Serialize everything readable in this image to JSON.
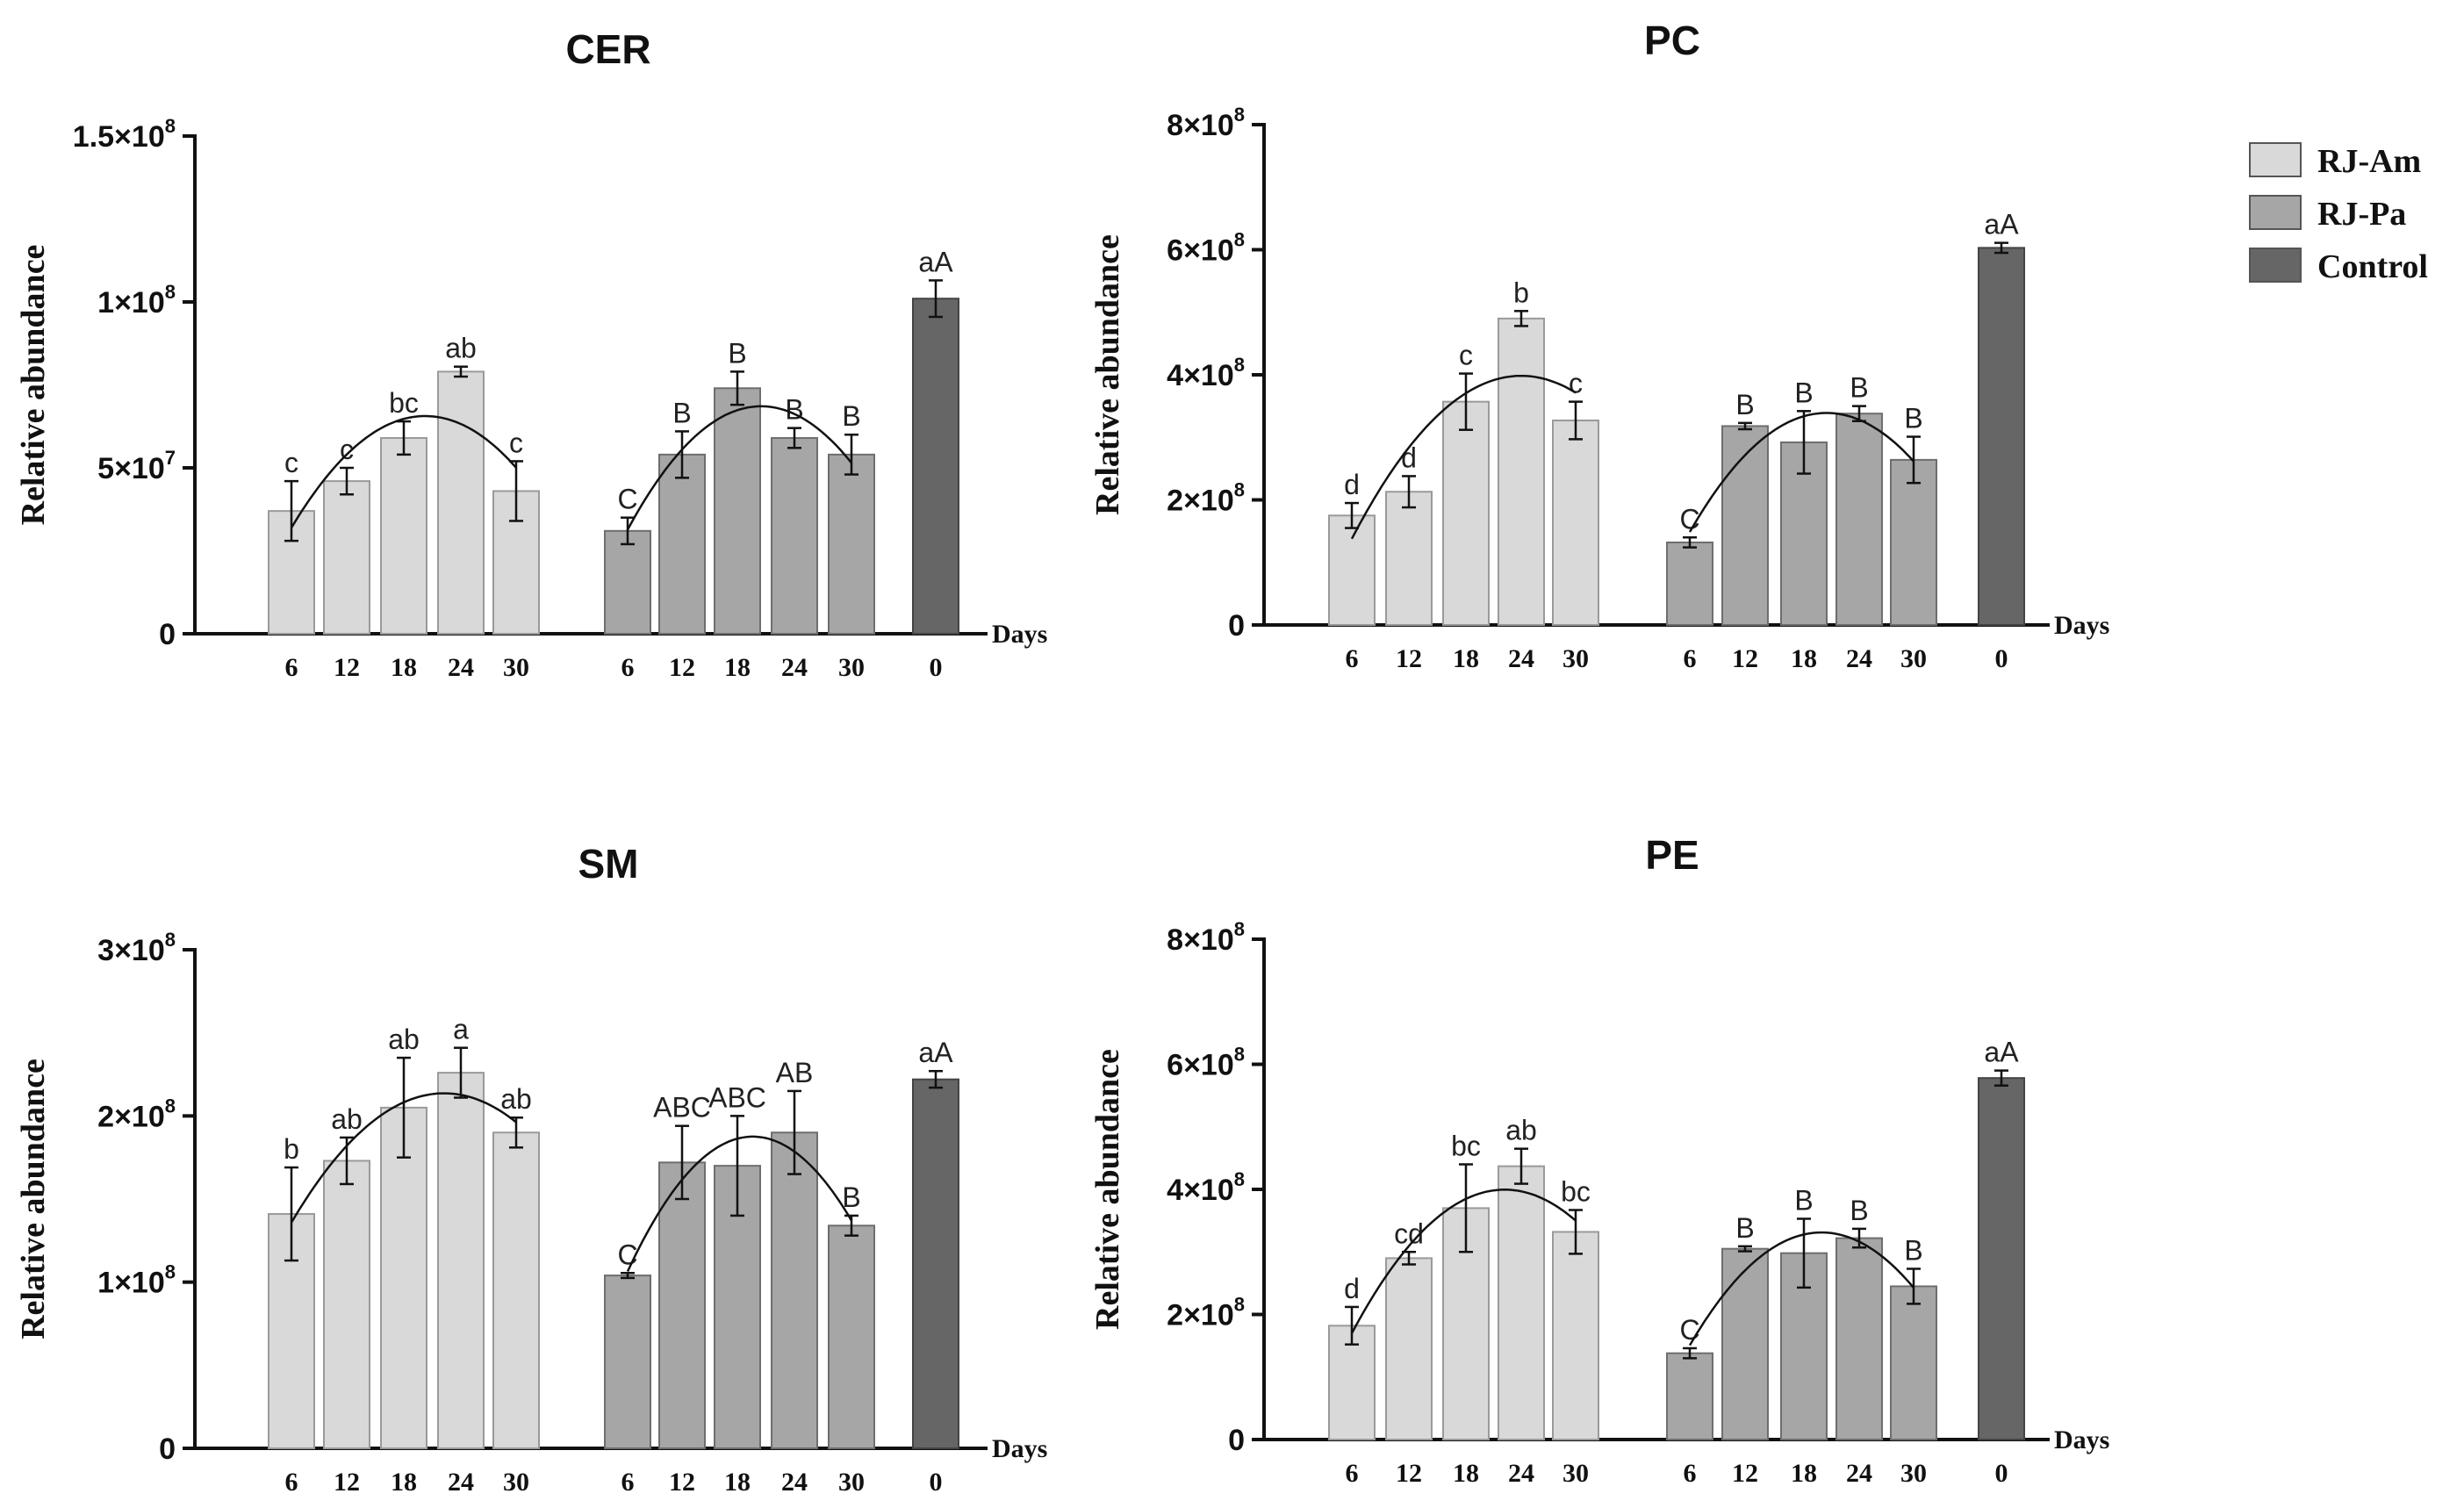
{
  "legend": [
    {
      "label": "RJ-Am",
      "color": "#d9d9d9"
    },
    {
      "label": "RJ-Pa",
      "color": "#a6a6a6"
    },
    {
      "label": "Control",
      "color": "#666666"
    }
  ],
  "y_axis_label": "Relative abundance",
  "x_axis_label": "Days",
  "chart_data": [
    {
      "type": "bar",
      "title": "CER",
      "ylabel": "Relative abundance",
      "xlabel": "Days",
      "ylim": [
        0,
        150000000
      ],
      "yticks": [
        {
          "value": 0,
          "mantissa": "0",
          "exponent": ""
        },
        {
          "value": 50000000,
          "mantissa": "5×10",
          "exponent": "7"
        },
        {
          "value": 100000000,
          "mantissa": "1×10",
          "exponent": "8"
        },
        {
          "value": 150000000,
          "mantissa": "1.5×10",
          "exponent": "8"
        }
      ],
      "groups": [
        {
          "name": "RJ-Am",
          "days": [
            "6",
            "12",
            "18",
            "24",
            "30"
          ],
          "values": [
            37000000,
            46000000,
            59000000,
            79000000,
            43000000
          ],
          "errors": [
            9000000,
            4000000,
            5000000,
            1500000,
            9000000
          ],
          "labels": [
            "c",
            "c",
            "bc",
            "ab",
            "c"
          ]
        },
        {
          "name": "RJ-Pa",
          "days": [
            "6",
            "12",
            "18",
            "24",
            "30"
          ],
          "values": [
            31000000,
            54000000,
            74000000,
            59000000,
            54000000
          ],
          "errors": [
            4000000,
            7000000,
            5000000,
            3000000,
            6000000
          ],
          "labels": [
            "C",
            "B",
            "B",
            "B",
            "B"
          ]
        },
        {
          "name": "Control",
          "days": [
            "0"
          ],
          "values": [
            101000000
          ],
          "errors": [
            5500000
          ],
          "labels": [
            "aA"
          ]
        }
      ]
    },
    {
      "type": "bar",
      "title": "PC",
      "ylabel": "Relative abundance",
      "xlabel": "Days",
      "ylim": [
        0,
        800000000
      ],
      "yticks": [
        {
          "value": 0,
          "mantissa": "0",
          "exponent": ""
        },
        {
          "value": 200000000,
          "mantissa": "2×10",
          "exponent": "8"
        },
        {
          "value": 400000000,
          "mantissa": "4×10",
          "exponent": "8"
        },
        {
          "value": 600000000,
          "mantissa": "6×10",
          "exponent": "8"
        },
        {
          "value": 800000000,
          "mantissa": "8×10",
          "exponent": "8"
        }
      ],
      "groups": [
        {
          "name": "RJ-Am",
          "days": [
            "6",
            "12",
            "18",
            "24",
            "30"
          ],
          "values": [
            175000000,
            213000000,
            357000000,
            490000000,
            327000000
          ],
          "errors": [
            20000000,
            25000000,
            45000000,
            12000000,
            30000000
          ],
          "labels": [
            "d",
            "d",
            "c",
            "b",
            "c"
          ]
        },
        {
          "name": "RJ-Pa",
          "days": [
            "6",
            "12",
            "18",
            "24",
            "30"
          ],
          "values": [
            132000000,
            318000000,
            292000000,
            338000000,
            264000000
          ],
          "errors": [
            8000000,
            5000000,
            50000000,
            12000000,
            37000000
          ],
          "labels": [
            "C",
            "B",
            "B",
            "B",
            "B"
          ]
        },
        {
          "name": "Control",
          "days": [
            "0"
          ],
          "values": [
            603000000
          ],
          "errors": [
            8000000
          ],
          "labels": [
            "aA"
          ]
        }
      ]
    },
    {
      "type": "bar",
      "title": "SM",
      "ylabel": "Relative abundance",
      "xlabel": "Days",
      "ylim": [
        0,
        300000000
      ],
      "yticks": [
        {
          "value": 0,
          "mantissa": "0",
          "exponent": ""
        },
        {
          "value": 100000000,
          "mantissa": "1×10",
          "exponent": "8"
        },
        {
          "value": 200000000,
          "mantissa": "2×10",
          "exponent": "8"
        },
        {
          "value": 300000000,
          "mantissa": "3×10",
          "exponent": "8"
        }
      ],
      "groups": [
        {
          "name": "RJ-Am",
          "days": [
            "6",
            "12",
            "18",
            "24",
            "30"
          ],
          "values": [
            141000000,
            173000000,
            205000000,
            226000000,
            190000000
          ],
          "errors": [
            28000000,
            14000000,
            30000000,
            15000000,
            9000000
          ],
          "labels": [
            "b",
            "ab",
            "ab",
            "a",
            "ab"
          ]
        },
        {
          "name": "RJ-Pa",
          "days": [
            "6",
            "12",
            "18",
            "24",
            "30"
          ],
          "values": [
            104000000,
            172000000,
            170000000,
            190000000,
            134000000
          ],
          "errors": [
            1500000,
            22000000,
            30000000,
            25000000,
            6000000
          ],
          "labels": [
            "C",
            "ABC",
            "ABC",
            "AB",
            "B"
          ]
        },
        {
          "name": "Control",
          "days": [
            "0"
          ],
          "values": [
            222000000
          ],
          "errors": [
            5000000
          ],
          "labels": [
            "aA"
          ]
        }
      ]
    },
    {
      "type": "bar",
      "title": "PE",
      "ylabel": "Relative abundance",
      "xlabel": "Days",
      "ylim": [
        0,
        800000000
      ],
      "yticks": [
        {
          "value": 0,
          "mantissa": "0",
          "exponent": ""
        },
        {
          "value": 200000000,
          "mantissa": "2×10",
          "exponent": "8"
        },
        {
          "value": 400000000,
          "mantissa": "4×10",
          "exponent": "8"
        },
        {
          "value": 600000000,
          "mantissa": "6×10",
          "exponent": "8"
        },
        {
          "value": 800000000,
          "mantissa": "8×10",
          "exponent": "8"
        }
      ],
      "groups": [
        {
          "name": "RJ-Am",
          "days": [
            "6",
            "12",
            "18",
            "24",
            "30"
          ],
          "values": [
            182000000,
            290000000,
            370000000,
            437000000,
            332000000
          ],
          "errors": [
            30000000,
            10000000,
            70000000,
            28000000,
            35000000
          ],
          "labels": [
            "d",
            "cd",
            "bc",
            "ab",
            "bc"
          ]
        },
        {
          "name": "RJ-Pa",
          "days": [
            "6",
            "12",
            "18",
            "24",
            "30"
          ],
          "values": [
            138000000,
            305000000,
            298000000,
            322000000,
            245000000
          ],
          "errors": [
            8000000,
            4000000,
            55000000,
            15000000,
            28000000
          ],
          "labels": [
            "C",
            "B",
            "B",
            "B",
            "B"
          ]
        },
        {
          "name": "Control",
          "days": [
            "0"
          ],
          "values": [
            578000000
          ],
          "errors": [
            12000000
          ],
          "labels": [
            "aA"
          ]
        }
      ]
    }
  ]
}
